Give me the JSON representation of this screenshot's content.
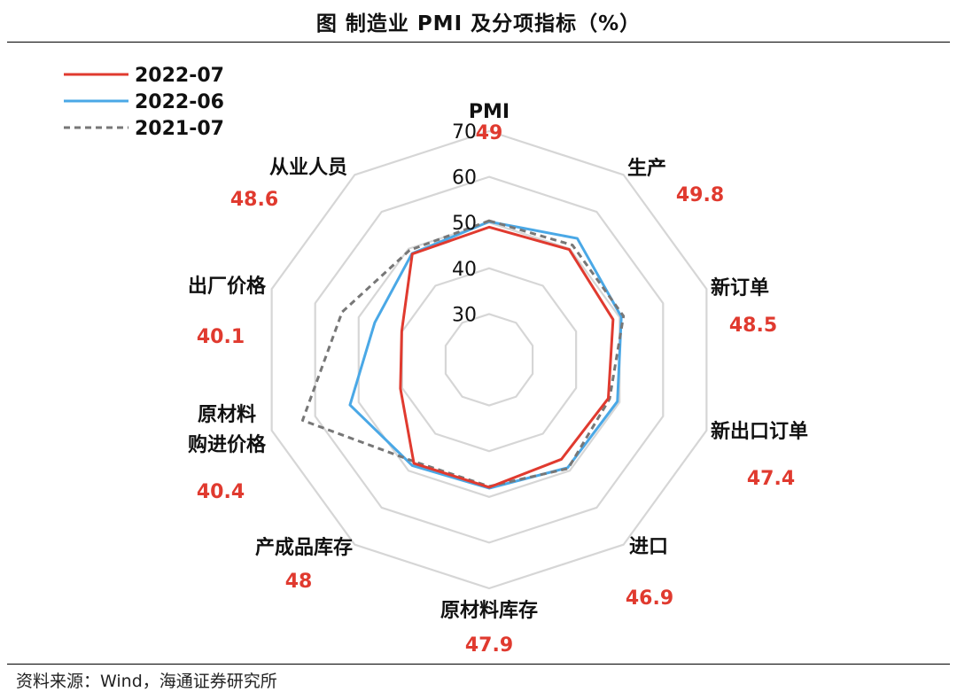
{
  "title": "图  制造业 PMI 及分项指标（%）",
  "source": "资料来源：Wind，海通证券研究所",
  "colors": {
    "series_2022_07": "#e03a2f",
    "series_2022_06": "#4aa8e6",
    "series_2021_07": "#777777",
    "value_label": "#e03a2f",
    "grid": "#d6d6d6"
  },
  "chart_data": {
    "type": "radar",
    "title": "制造业 PMI 及分项指标（%）",
    "axes": [
      {
        "label_lines": [
          "PMI"
        ],
        "value": "49"
      },
      {
        "label_lines": [
          "生产"
        ],
        "value": "49.8"
      },
      {
        "label_lines": [
          "新订单"
        ],
        "value": "48.5"
      },
      {
        "label_lines": [
          "新出口订单"
        ],
        "value": "47.4"
      },
      {
        "label_lines": [
          "进口"
        ],
        "value": "46.9"
      },
      {
        "label_lines": [
          "原材料库存"
        ],
        "value": "47.9"
      },
      {
        "label_lines": [
          "产成品库存"
        ],
        "value": "48"
      },
      {
        "label_lines": [
          "原材料",
          "购进价格"
        ],
        "value": "40.4"
      },
      {
        "label_lines": [
          "出厂价格"
        ],
        "value": "40.1"
      },
      {
        "label_lines": [
          "从业人员"
        ],
        "value": "48.6"
      }
    ],
    "rlim": [
      20,
      70
    ],
    "ticks": [
      "30",
      "40",
      "50",
      "60",
      "70"
    ],
    "grid": true,
    "legend_position": "top-left",
    "series": [
      {
        "name": "2022-07",
        "style": "solid",
        "values": [
          49.0,
          49.8,
          48.5,
          47.4,
          46.9,
          47.9,
          48.0,
          40.4,
          40.1,
          48.6
        ]
      },
      {
        "name": "2022-06",
        "style": "solid",
        "values": [
          50.2,
          52.8,
          50.4,
          49.5,
          49.2,
          48.1,
          48.6,
          52.0,
          46.3,
          48.7
        ]
      },
      {
        "name": "2021-07",
        "style": "dashed",
        "values": [
          50.4,
          51.0,
          50.9,
          47.7,
          49.4,
          47.7,
          47.6,
          62.9,
          53.8,
          49.6
        ]
      }
    ]
  }
}
